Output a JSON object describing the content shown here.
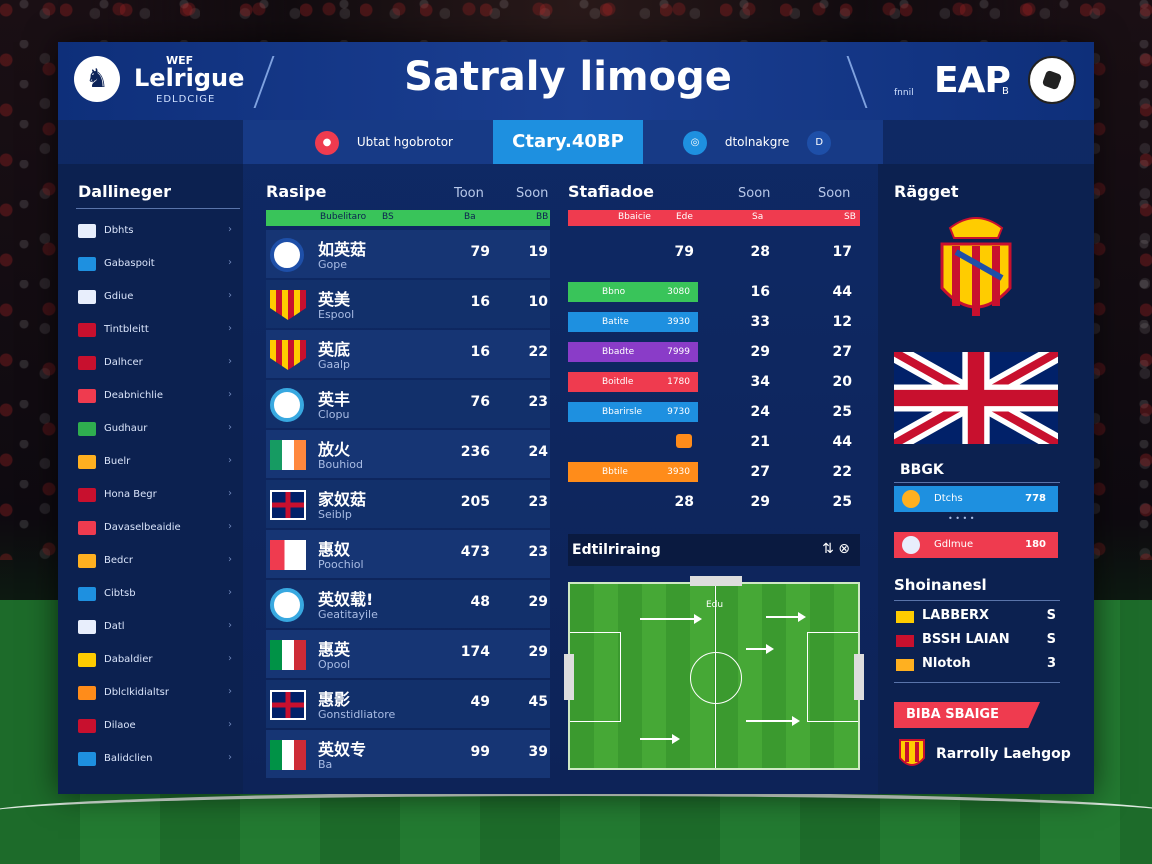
{
  "header": {
    "logo_top": "WEF",
    "logo_main": "Lelrigue",
    "logo_sub": "EDLDCIGE",
    "title": "Satraly limoge",
    "small_text": "fnnil",
    "brand": "EAP",
    "brand_sub": "B"
  },
  "tabs": [
    {
      "label": "Ubtat hgobrotor",
      "color": "#ef3b4f"
    },
    {
      "label": "Ctary.40BP",
      "active": true
    },
    {
      "label": "dtolnakgre",
      "color": "#1e90e0"
    }
  ],
  "sidebar": {
    "title": "Dallineger",
    "items": [
      {
        "label": "Dbhts",
        "color": "#e8eefc"
      },
      {
        "label": "Gabaspoit",
        "color": "#1e90e0"
      },
      {
        "label": "Gdiue",
        "color": "#e8eefc"
      },
      {
        "label": "Tintbleitt",
        "color": "#c8102e"
      },
      {
        "label": "Dalhcer",
        "color": "#c8102e"
      },
      {
        "label": "Deabnichlie",
        "color": "#ef3b4f"
      },
      {
        "label": "Gudhaur",
        "color": "#2fae4f"
      },
      {
        "label": "Buelr",
        "color": "#ffb020"
      },
      {
        "label": "Hona Begr",
        "color": "#c8102e"
      },
      {
        "label": "Davaselbeaidie",
        "color": "#ef3b4f"
      },
      {
        "label": "Bedcr",
        "color": "#ffb020"
      },
      {
        "label": "Cibtsb",
        "color": "#1e90e0"
      },
      {
        "label": "Datl",
        "color": "#e8eefc"
      },
      {
        "label": "Dabaldier",
        "color": "#ffcc00"
      },
      {
        "label": "Dblclkidialtsr",
        "color": "#ff8c1a"
      },
      {
        "label": "Dilaoe",
        "color": "#c8102e"
      },
      {
        "label": "Balidclien",
        "color": "#1e90e0"
      }
    ]
  },
  "ranking": {
    "title": "Rasipe",
    "col1": "Toon",
    "col2": "Soon",
    "bar_left": "Bubelitaro",
    "bar_mid": "BS",
    "bar_r1": "Ba",
    "bar_r2": "BB",
    "rows": [
      {
        "name": "如英菇",
        "sub": "Gope",
        "v1": "79",
        "v2": "19",
        "kind": "crest",
        "color": "#1e4fa8"
      },
      {
        "name": "英美",
        "sub": "Espool",
        "v1": "16",
        "v2": "10",
        "kind": "shield",
        "color": "#ffb020"
      },
      {
        "name": "英底",
        "sub": "Gaalp",
        "v1": "16",
        "v2": "22",
        "kind": "shield",
        "color": "#ffb020"
      },
      {
        "name": "英丰",
        "sub": "Clopu",
        "v1": "76",
        "v2": "23",
        "kind": "crest",
        "color": "#38a8e0"
      },
      {
        "name": "放火",
        "sub": "Bouhiod",
        "v1": "236",
        "v2": "24",
        "kind": "ie",
        "color": "#2fae4f"
      },
      {
        "name": "家奴菇",
        "sub": "Seiblp",
        "v1": "205",
        "v2": "23",
        "kind": "uk",
        "color": "#c8102e"
      },
      {
        "name": "惠奴",
        "sub": "Poochiol",
        "v1": "473",
        "v2": "23",
        "kind": "redflag",
        "color": "#ef3b4f"
      },
      {
        "name": "英奴载!",
        "sub": "Geatitayile",
        "v1": "48",
        "v2": "29",
        "kind": "crest",
        "color": "#38a8e0"
      },
      {
        "name": "惠英",
        "sub": "Opool",
        "v1": "174",
        "v2": "29",
        "kind": "it",
        "color": "#2fae4f"
      },
      {
        "name": "惠影",
        "sub": "Gonstidliatore",
        "v1": "49",
        "v2": "45",
        "kind": "uk",
        "color": "#c8102e"
      },
      {
        "name": "英奴专",
        "sub": "Ba",
        "v1": "99",
        "v2": "39",
        "kind": "it",
        "color": "#2fae4f"
      }
    ]
  },
  "stats": {
    "title": "Stafiadoe",
    "col1": "Soon",
    "col2": "Soon",
    "bar_left": "Bbaicie",
    "bar_mid": "Ede",
    "bar_r1": "Sa",
    "bar_r2": "SB",
    "rows": [
      {
        "pill": "",
        "pill_val": "",
        "color": "",
        "n0": "79",
        "n1": "28",
        "n2": "17"
      },
      {
        "pill": "Bbno",
        "pill_val": "3080",
        "color": "#39c45a",
        "n0": "",
        "n1": "16",
        "n2": "44"
      },
      {
        "pill": "Batite",
        "pill_val": "3930",
        "color": "#1e90e0",
        "n0": "",
        "n1": "33",
        "n2": "12"
      },
      {
        "pill": "Bbadte",
        "pill_val": "7999",
        "color": "#8a3cc8",
        "n0": "",
        "n1": "29",
        "n2": "27"
      },
      {
        "pill": "Boitdle",
        "pill_val": "1780",
        "color": "#ef3b4f",
        "n0": "",
        "n1": "34",
        "n2": "20"
      },
      {
        "pill": "Bbarirsle",
        "pill_val": "9730",
        "color": "#1e90e0",
        "n0": "",
        "n1": "24",
        "n2": "25"
      },
      {
        "pill": "",
        "pill_val": "",
        "color": "",
        "n0": "",
        "n1": "21",
        "n2": "44",
        "icon": true
      },
      {
        "pill": "Bbtile",
        "pill_val": "3930",
        "color": "#ff8c1a",
        "n0": "",
        "n1": "27",
        "n2": "22"
      },
      {
        "pill": "",
        "pill_val": "",
        "color": "",
        "n0": "28",
        "n1": "29",
        "n2": "25"
      }
    ],
    "strategy_title": "Edtilriraing",
    "strategy_icons": "⇅ ⊗",
    "field_label": "Edu"
  },
  "right": {
    "title": "Rägget",
    "badge": "BBGK",
    "bars": [
      {
        "label": "Dtchs",
        "value": "778",
        "color": "#1e90e0"
      },
      {
        "label": "Gdlmue",
        "value": "180",
        "color": "#ef3b4f"
      }
    ],
    "dots": "• • • •",
    "short_title": "Shoinanesl",
    "list": [
      {
        "label": "LABBERX",
        "value": "S",
        "color": "#ffcc00"
      },
      {
        "label": "BSSH LAIAN",
        "value": "S",
        "color": "#c8102e"
      },
      {
        "label": "Nlotoh",
        "value": "3",
        "color": "#ffb020"
      }
    ],
    "tag": "BIBA SBAIGE",
    "footer_label": "Rarrolly Laehgop"
  }
}
